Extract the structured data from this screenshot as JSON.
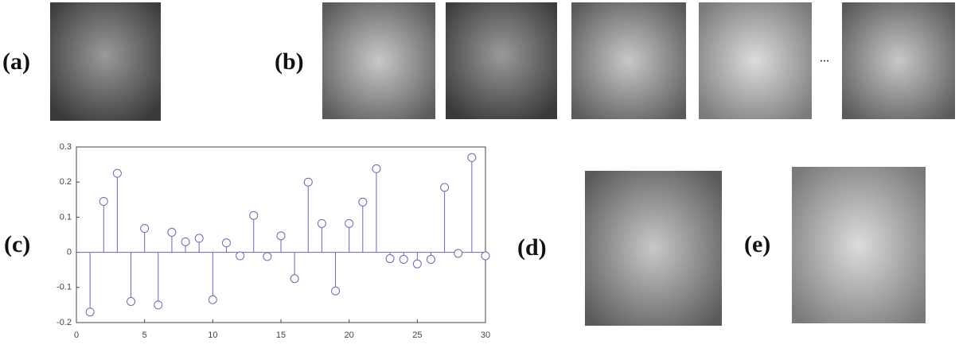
{
  "panels": {
    "a": "(a)",
    "b": "(b)",
    "c": "(c)",
    "d": "(d)",
    "e": "(e)",
    "ellipsis": "..."
  },
  "chart_data": {
    "type": "stem",
    "color": "#6a6ab0",
    "x": [
      1,
      2,
      3,
      4,
      5,
      6,
      7,
      8,
      9,
      10,
      11,
      12,
      13,
      14,
      15,
      16,
      17,
      18,
      19,
      20,
      21,
      22,
      23,
      24,
      25,
      26,
      27,
      28,
      29,
      30
    ],
    "values": [
      -0.17,
      0.145,
      0.225,
      -0.14,
      0.068,
      -0.15,
      0.057,
      0.03,
      0.04,
      -0.135,
      0.027,
      -0.01,
      0.105,
      -0.012,
      0.047,
      -0.075,
      0.2,
      0.082,
      -0.11,
      0.082,
      0.143,
      0.238,
      -0.018,
      -0.02,
      -0.033,
      -0.02,
      0.185,
      -0.003,
      0.27,
      -0.01
    ],
    "xlim": [
      0,
      30
    ],
    "ylim": [
      -0.2,
      0.3
    ],
    "xticks": [
      0,
      5,
      10,
      15,
      20,
      25,
      30
    ],
    "yticks": [
      -0.2,
      -0.1,
      0,
      0.1,
      0.2,
      0.3
    ]
  }
}
